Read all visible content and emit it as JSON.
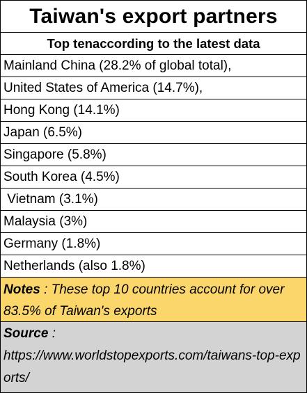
{
  "table": {
    "title": "Taiwan's export  partners",
    "subtitle": "Top tenaccording to the latest data",
    "rows": [
      "Mainland China (28.2% of global total),",
      "United States of America (14.7%),",
      "Hong Kong (14.1%)",
      "Japan (6.5%)",
      "Singapore (5.8%)",
      "South Korea (4.5%)",
      " Vietnam (3.1%)",
      "Malaysia (3%)",
      "Germany (1.8%)",
      "Netherlands (also 1.8%)"
    ],
    "notes_label": "Notes",
    "notes_text": " : These top 10 countries account for over  83.5%  of Taiwan's exports",
    "source_label": "Source",
    "source_sep": " :",
    "source_url": "https://www.worldstopexports.com/taiwans-top-exports/"
  },
  "colors": {
    "notes_bg": "#fbd66a",
    "source_bg": "#d3d3d3",
    "border": "#000000"
  }
}
